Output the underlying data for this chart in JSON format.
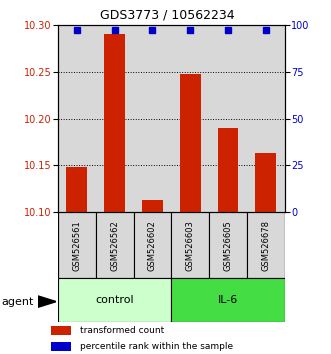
{
  "title": "GDS3773 / 10562234",
  "samples": [
    "GSM526561",
    "GSM526562",
    "GSM526602",
    "GSM526603",
    "GSM526605",
    "GSM526678"
  ],
  "red_values": [
    10.148,
    10.29,
    10.113,
    10.247,
    10.19,
    10.163
  ],
  "blue_values": [
    97,
    97,
    97,
    97,
    97,
    97
  ],
  "ylim_left": [
    10.1,
    10.3
  ],
  "ylim_right": [
    0,
    100
  ],
  "yticks_left": [
    10.1,
    10.15,
    10.2,
    10.25,
    10.3
  ],
  "yticks_right": [
    0,
    25,
    50,
    75,
    100
  ],
  "groups": [
    {
      "label": "control",
      "indices": [
        0,
        1,
        2
      ],
      "color": "#ccffcc"
    },
    {
      "label": "IL-6",
      "indices": [
        3,
        4,
        5
      ],
      "color": "#44dd44"
    }
  ],
  "bar_color": "#cc2200",
  "dot_color": "#0000cc",
  "legend_red_label": "transformed count",
  "legend_blue_label": "percentile rank within the sample",
  "agent_label": "agent",
  "bar_width": 0.55,
  "bar_bottom": 10.1,
  "background_color": "#ffffff",
  "plot_bg_color": "#d8d8d8",
  "grid_color": "#000000",
  "tick_label_color_left": "#cc2200",
  "tick_label_color_right": "#0000cc"
}
